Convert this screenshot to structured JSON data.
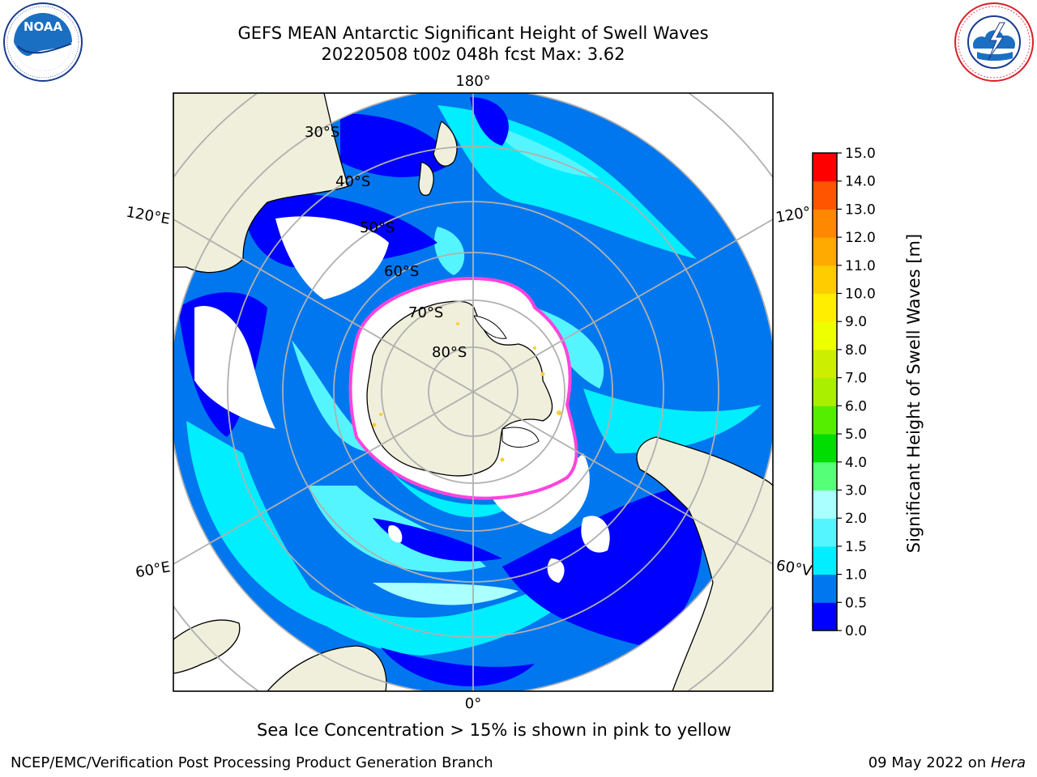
{
  "title": {
    "line1": "GEFS MEAN Antarctic Significant Height of Swell Waves",
    "line2": "20220508 t00z 048h fcst   Max: 3.62"
  },
  "logos": {
    "left": {
      "icon": "noaa-logo",
      "text": "NOAA",
      "ring_text": "NATIONAL OCEANIC AND ATMOSPHERIC ADMINISTRATION · U.S. DEPARTMENT OF COMMERCE"
    },
    "right": {
      "icon": "nws-logo",
      "ring_text": "NATIONAL WEATHER SERVICE"
    }
  },
  "map": {
    "projection": "south-polar-stereographic",
    "longitude_labels": {
      "top": "180°",
      "bottom": "0°",
      "upper_left": "120°E",
      "lower_left": "60°E",
      "upper_right": "120°",
      "lower_right": "60°V"
    },
    "latitude_labels": [
      "30°S",
      "40°S",
      "50°S",
      "60°S",
      "70°S",
      "80°S"
    ],
    "colors": {
      "land": "#efefdb",
      "grid": "#b0b0b0",
      "sea_ice_low": "#ff44dd",
      "sea_ice_high": "#ffcc33"
    }
  },
  "colorbar": {
    "label": "Significant Height of Swell Waves [m]",
    "ticks": [
      "0.0",
      "0.5",
      "1.0",
      "1.5",
      "2.0",
      "3.0",
      "4.0",
      "5.0",
      "6.0",
      "7.0",
      "8.0",
      "9.0",
      "10.0",
      "11.0",
      "12.0",
      "13.0",
      "14.0",
      "15.0"
    ],
    "colors": [
      "#0000ff",
      "#0077ee",
      "#00eeff",
      "#55f5ff",
      "#aaffff",
      "#55ff77",
      "#00dd00",
      "#55ee00",
      "#aaee00",
      "#ccee00",
      "#eeff00",
      "#ffee00",
      "#ffcc00",
      "#ffaa00",
      "#ff8800",
      "#ff5500",
      "#ff0000"
    ]
  },
  "caption": "Sea Ice Concentration > 15% is shown in pink to yellow",
  "footer": {
    "left": "NCEP/EMC/Verification Post Processing Product Generation Branch",
    "right_date": "09 May 2022 on ",
    "right_host": "Hera"
  }
}
